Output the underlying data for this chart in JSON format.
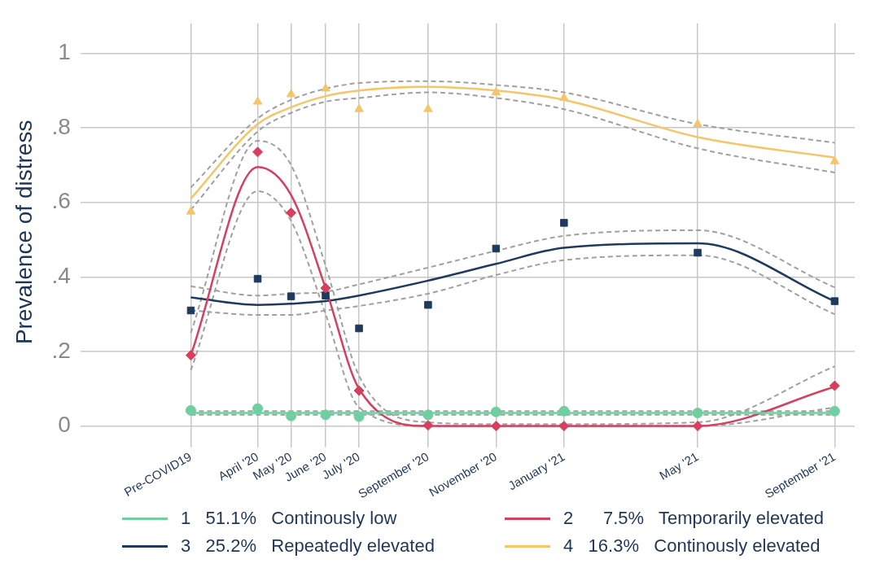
{
  "chart_data": {
    "type": "line",
    "ylabel": "Prevalence of distress",
    "x": [
      "2020-02",
      "2020-04",
      "2020-05",
      "2020-06",
      "2020-07",
      "2020-09",
      "2020-11",
      "2021-01",
      "2021-05",
      "2021-09"
    ],
    "xlim": [
      "2019-10-25",
      "2021-09-19"
    ],
    "xticks": [
      {
        "value": "2020-02",
        "label": "Pre-COVID19"
      },
      {
        "value": "2020-04",
        "label": "April '20"
      },
      {
        "value": "2020-05",
        "label": "May '20"
      },
      {
        "value": "2020-06",
        "label": "June '20"
      },
      {
        "value": "2020-07",
        "label": "July '20"
      },
      {
        "value": "2020-09",
        "label": "September '20"
      },
      {
        "value": "2020-11",
        "label": "November '20"
      },
      {
        "value": "2021-01",
        "label": "January '21"
      },
      {
        "value": "2021-05",
        "label": "May '21"
      },
      {
        "value": "2021-09",
        "label": "September '21"
      }
    ],
    "ylim": [
      -0.04,
      1.08
    ],
    "yticks": [
      {
        "value": 0,
        "label": "0"
      },
      {
        "value": 0.2,
        "label": ".2"
      },
      {
        "value": 0.4,
        "label": ".4"
      },
      {
        "value": 0.6,
        "label": ".6"
      },
      {
        "value": 0.8,
        "label": ".8"
      },
      {
        "value": 1,
        "label": "1"
      }
    ],
    "grid": true,
    "legend": "bottom",
    "line_style": "solid",
    "series": [
      {
        "name": "1   51.1%   Continously low",
        "type": "line",
        "marker": "none",
        "color": "#6fcf9f",
        "values": [
          0.035,
          0.035,
          0.035,
          0.035,
          0.035,
          0.035,
          0.035,
          0.035,
          0.035,
          0.035
        ]
      },
      {
        "name": "2      7.5%   Temporarily elevated",
        "type": "line",
        "marker": "none",
        "color": "#d6405e",
        "values": [
          0.19,
          0.695,
          0.62,
          0.37,
          0.1,
          0.0,
          0.0,
          0.0,
          0.0,
          0.105
        ]
      },
      {
        "name": "3   25.2%   Repeatedly elevated",
        "type": "line",
        "marker": "none",
        "color": "#1f3a5f",
        "values": [
          0.345,
          0.325,
          0.328,
          0.335,
          0.35,
          0.39,
          0.435,
          0.478,
          0.49,
          0.335
        ]
      },
      {
        "name": "4   16.3%   Continously elevated",
        "type": "line",
        "marker": "none",
        "color": "#f5c56a",
        "values": [
          0.61,
          0.81,
          0.855,
          0.885,
          0.9,
          0.91,
          0.9,
          0.875,
          0.775,
          0.72
        ]
      },
      {
        "type": "line",
        "marker": "none",
        "line_style": "dashed",
        "color": "#a0a0a0",
        "values": [
          0.03,
          0.03,
          0.03,
          0.03,
          0.03,
          0.03,
          0.03,
          0.03,
          0.03,
          0.03
        ]
      },
      {
        "type": "line",
        "marker": "none",
        "line_style": "dashed",
        "color": "#a0a0a0",
        "values": [
          0.04,
          0.04,
          0.04,
          0.04,
          0.04,
          0.04,
          0.04,
          0.04,
          0.04,
          0.04
        ]
      },
      {
        "type": "line",
        "marker": "none",
        "line_style": "dashed",
        "color": "#a0a0a0",
        "values": [
          0.15,
          0.63,
          0.55,
          0.3,
          0.05,
          0.0,
          0.0,
          0.0,
          0.0,
          0.05
        ]
      },
      {
        "type": "line",
        "marker": "none",
        "line_style": "dashed",
        "color": "#a0a0a0",
        "values": [
          0.25,
          0.765,
          0.7,
          0.43,
          0.135,
          0.01,
          0.005,
          0.005,
          0.01,
          0.16
        ]
      },
      {
        "type": "line",
        "marker": "none",
        "line_style": "dashed",
        "color": "#a0a0a0",
        "values": [
          0.31,
          0.298,
          0.298,
          0.31,
          0.322,
          0.355,
          0.405,
          0.445,
          0.458,
          0.3
        ]
      },
      {
        "type": "line",
        "marker": "none",
        "line_style": "dashed",
        "color": "#a0a0a0",
        "values": [
          0.375,
          0.35,
          0.355,
          0.36,
          0.38,
          0.425,
          0.47,
          0.51,
          0.525,
          0.372
        ]
      },
      {
        "type": "line",
        "marker": "none",
        "line_style": "dashed",
        "color": "#a0a0a0",
        "values": [
          0.58,
          0.79,
          0.84,
          0.87,
          0.88,
          0.895,
          0.88,
          0.85,
          0.745,
          0.68
        ]
      },
      {
        "type": "line",
        "marker": "none",
        "line_style": "dashed",
        "color": "#a0a0a0",
        "values": [
          0.64,
          0.825,
          0.875,
          0.905,
          0.92,
          0.925,
          0.915,
          0.895,
          0.81,
          0.76
        ]
      },
      {
        "type": "scatter",
        "marker": "circle",
        "color": "#6fcf9f",
        "values": [
          0.042,
          0.047,
          0.027,
          0.03,
          0.025,
          0.03,
          0.038,
          0.04,
          0.035,
          0.04
        ]
      },
      {
        "type": "scatter",
        "marker": "diamond",
        "color": "#d6405e",
        "values": [
          0.19,
          0.735,
          0.572,
          0.37,
          0.095,
          0.002,
          0.0,
          0.0,
          0.0,
          0.108
        ]
      },
      {
        "type": "scatter",
        "marker": "square",
        "color": "#1f3a5f",
        "values": [
          0.31,
          0.395,
          0.348,
          0.35,
          0.262,
          0.325,
          0.476,
          0.545,
          0.465,
          0.335
        ]
      },
      {
        "type": "scatter",
        "marker": "triangle",
        "color": "#f5c56a",
        "values": [
          0.575,
          0.87,
          0.89,
          0.905,
          0.85,
          0.85,
          0.895,
          0.88,
          0.81,
          0.71
        ]
      }
    ]
  }
}
